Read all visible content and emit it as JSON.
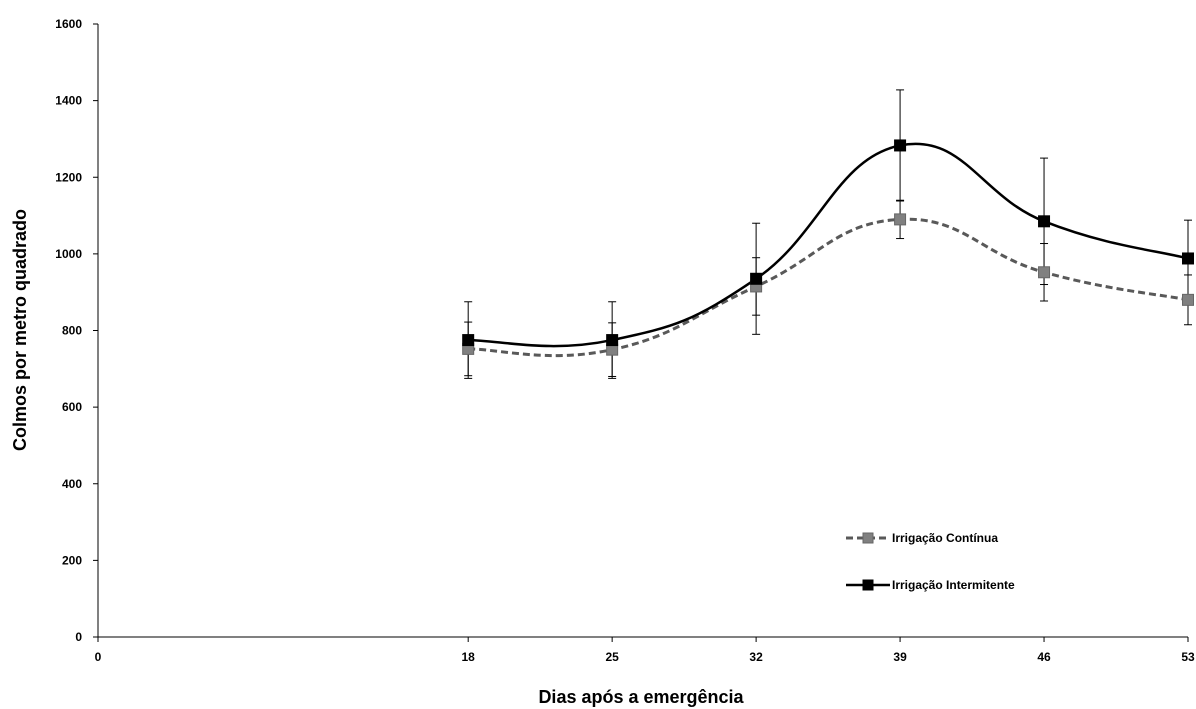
{
  "chart_data": {
    "type": "line",
    "title": "",
    "xlabel": "Dias após a emergência",
    "ylabel": "Colmos por metro quadrado",
    "x": [
      18,
      25,
      32,
      39,
      46,
      53
    ],
    "xticks": [
      0,
      18,
      25,
      32,
      39,
      46,
      53
    ],
    "yticks": [
      0,
      200,
      400,
      600,
      800,
      1000,
      1200,
      1400,
      1600
    ],
    "xlim": [
      0,
      53
    ],
    "ylim": [
      0,
      1600
    ],
    "grid": false,
    "legend_position": "bottom-right",
    "series": [
      {
        "name": "Irrigação Contínua",
        "values": [
          752,
          750,
          915,
          1090,
          952,
          880
        ],
        "error": [
          70,
          70,
          75,
          50,
          75,
          65
        ],
        "color": "#808080",
        "line_color": "#595959",
        "line_style": "dashed",
        "marker": "square"
      },
      {
        "name": "Irrigação Intermitente",
        "values": [
          775,
          775,
          935,
          1283,
          1085,
          988
        ],
        "error": [
          100,
          100,
          145,
          145,
          165,
          100
        ],
        "color": "#000000",
        "line_color": "#000000",
        "line_style": "solid",
        "marker": "square"
      }
    ]
  }
}
